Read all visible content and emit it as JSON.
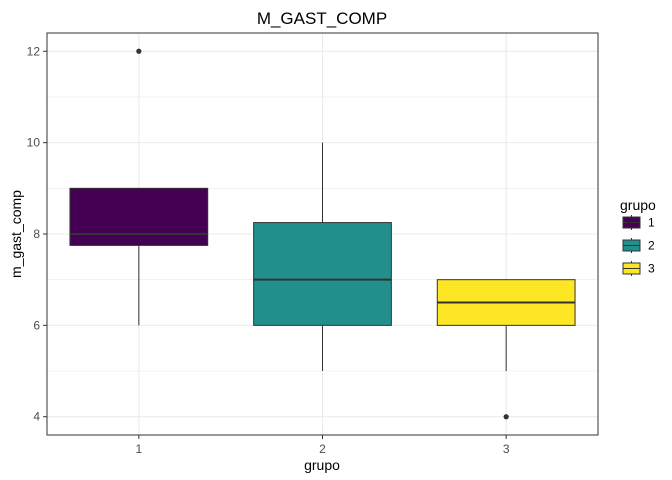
{
  "chart_data": {
    "type": "boxplot",
    "title": "M_GAST_COMP",
    "xlabel": "grupo",
    "ylabel": "m_gast_comp",
    "categories": [
      "1",
      "2",
      "3"
    ],
    "ylim": [
      3.6,
      12.4
    ],
    "yticks": [
      4,
      6,
      8,
      10,
      12
    ],
    "grid": true,
    "legend": {
      "title": "grupo",
      "placement": "right",
      "labels": [
        "1",
        "2",
        "3"
      ]
    },
    "colors": [
      "#440154",
      "#21908C",
      "#FDE725"
    ],
    "boxes": [
      {
        "group": "1",
        "whisker_low": 6,
        "q1": 7.75,
        "median": 8,
        "q3": 9,
        "whisker_high": 9,
        "outliers": [
          12
        ]
      },
      {
        "group": "2",
        "whisker_low": 5,
        "q1": 6,
        "median": 7,
        "q3": 8.25,
        "whisker_high": 10,
        "outliers": []
      },
      {
        "group": "3",
        "whisker_low": 5,
        "q1": 6,
        "median": 6.5,
        "q3": 7,
        "whisker_high": 7,
        "outliers": [
          4
        ]
      }
    ]
  }
}
